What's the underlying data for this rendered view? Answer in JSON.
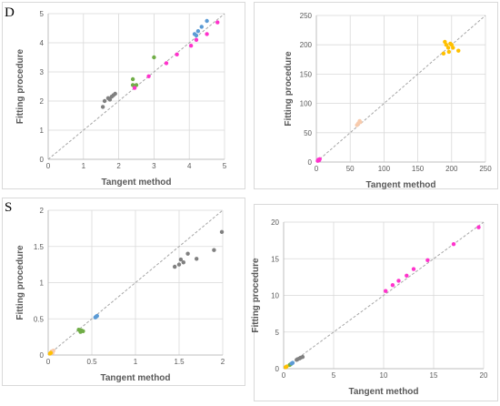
{
  "row_labels": {
    "top": "D",
    "bottom": "S"
  },
  "chart_data": [
    {
      "type": "scatter",
      "xlabel": "Tangent method",
      "ylabel": "Fitting procedure",
      "xlim": [
        0,
        5
      ],
      "ylim": [
        0,
        5
      ],
      "xticks": [
        "0",
        "1",
        "2",
        "3",
        "4",
        "5"
      ],
      "yticks": [
        "0",
        "1",
        "2",
        "3",
        "4",
        "5"
      ],
      "grid": true,
      "identity_line": true,
      "series": [
        {
          "color": "#808080",
          "points": [
            [
              1.55,
              1.8
            ],
            [
              1.6,
              2.0
            ],
            [
              1.7,
              2.1
            ],
            [
              1.75,
              2.05
            ],
            [
              1.8,
              2.15
            ],
            [
              1.85,
              2.2
            ],
            [
              1.9,
              2.25
            ]
          ]
        },
        {
          "color": "#70ad47",
          "points": [
            [
              2.4,
              2.75
            ],
            [
              2.4,
              2.55
            ],
            [
              2.45,
              2.5
            ],
            [
              2.5,
              2.55
            ],
            [
              3.0,
              3.5
            ]
          ]
        },
        {
          "color": "#ff33cc",
          "points": [
            [
              2.45,
              2.45
            ],
            [
              2.85,
              2.85
            ],
            [
              3.35,
              3.3
            ],
            [
              3.65,
              3.6
            ],
            [
              4.05,
              3.9
            ],
            [
              4.2,
              4.1
            ],
            [
              4.5,
              4.3
            ],
            [
              4.8,
              4.7
            ]
          ]
        },
        {
          "color": "#5b9bd5",
          "points": [
            [
              4.15,
              4.3
            ],
            [
              4.2,
              4.25
            ],
            [
              4.25,
              4.4
            ],
            [
              4.35,
              4.55
            ],
            [
              4.5,
              4.75
            ]
          ]
        }
      ]
    },
    {
      "type": "scatter",
      "xlabel": "Tangent method",
      "ylabel": "Fitting procedure",
      "xlim": [
        0,
        250
      ],
      "ylim": [
        0,
        250
      ],
      "xticks": [
        "0",
        "50",
        "100",
        "150",
        "200",
        "250"
      ],
      "yticks": [
        "0",
        "50",
        "100",
        "150",
        "200",
        "250"
      ],
      "grid": true,
      "identity_line": true,
      "series": [
        {
          "color": "#ffc000",
          "points": [
            [
              188,
              185
            ],
            [
              190,
              205
            ],
            [
              192,
              200
            ],
            [
              195,
              195
            ],
            [
              196,
              188
            ],
            [
              198,
              202
            ],
            [
              200,
              200
            ],
            [
              202,
              195
            ],
            [
              210,
              190
            ]
          ]
        },
        {
          "color": "#f8cbad",
          "points": [
            [
              60,
              63
            ],
            [
              62,
              66
            ],
            [
              64,
              70
            ],
            [
              65,
              68
            ]
          ]
        },
        {
          "color": "#ff33cc",
          "points": [
            [
              2,
              2
            ],
            [
              3,
              4
            ],
            [
              4,
              3
            ],
            [
              5,
              5
            ]
          ]
        }
      ]
    },
    {
      "type": "scatter",
      "xlabel": "Tangent method",
      "ylabel": "Fitting procedure",
      "xlim": [
        0,
        2
      ],
      "ylim": [
        0,
        2
      ],
      "xticks": [
        "0",
        "0.5",
        "1",
        "1.5",
        "2"
      ],
      "yticks": [
        "0",
        "0.5",
        "1",
        "1.5",
        "2"
      ],
      "grid": true,
      "identity_line": true,
      "series": [
        {
          "color": "#808080",
          "points": [
            [
              1.45,
              1.22
            ],
            [
              1.5,
              1.25
            ],
            [
              1.52,
              1.32
            ],
            [
              1.55,
              1.28
            ],
            [
              1.6,
              1.4
            ],
            [
              1.7,
              1.33
            ],
            [
              1.9,
              1.45
            ],
            [
              1.99,
              1.7
            ]
          ]
        },
        {
          "color": "#70ad47",
          "points": [
            [
              0.35,
              0.35
            ],
            [
              0.37,
              0.32
            ],
            [
              0.38,
              0.34
            ],
            [
              0.4,
              0.33
            ]
          ]
        },
        {
          "color": "#5b9bd5",
          "points": [
            [
              0.54,
              0.52
            ],
            [
              0.55,
              0.53
            ],
            [
              0.56,
              0.54
            ]
          ]
        },
        {
          "color": "#f8cbad",
          "points": [
            [
              0.04,
              0.05
            ],
            [
              0.05,
              0.03
            ],
            [
              0.06,
              0.06
            ]
          ]
        },
        {
          "color": "#ffc000",
          "points": [
            [
              0.02,
              0.02
            ],
            [
              0.03,
              0.03
            ]
          ]
        }
      ]
    },
    {
      "type": "scatter",
      "xlabel": "Tangent method",
      "ylabel": "Fitting procedure",
      "xlim": [
        0,
        20
      ],
      "ylim": [
        0,
        20
      ],
      "xticks": [
        "0",
        "5",
        "10",
        "15",
        "20"
      ],
      "yticks": [
        "0",
        "5",
        "10",
        "15",
        "20"
      ],
      "grid": true,
      "identity_line": true,
      "series": [
        {
          "color": "#ff33cc",
          "points": [
            [
              10.2,
              10.6
            ],
            [
              10.9,
              11.4
            ],
            [
              11.5,
              12.0
            ],
            [
              12.3,
              12.7
            ],
            [
              13.0,
              13.6
            ],
            [
              14.4,
              14.8
            ],
            [
              17.0,
              17.0
            ],
            [
              19.5,
              19.3
            ]
          ]
        },
        {
          "color": "#808080",
          "points": [
            [
              1.3,
              1.2
            ],
            [
              1.4,
              1.3
            ],
            [
              1.6,
              1.4
            ],
            [
              1.7,
              1.5
            ],
            [
              1.9,
              1.6
            ]
          ]
        },
        {
          "color": "#70ad47",
          "points": [
            [
              0.6,
              0.5
            ],
            [
              0.7,
              0.6
            ]
          ]
        },
        {
          "color": "#5b9bd5",
          "points": [
            [
              0.8,
              0.7
            ],
            [
              0.9,
              0.8
            ]
          ]
        },
        {
          "color": "#ffc000",
          "points": [
            [
              0.2,
              0.2
            ],
            [
              0.3,
              0.3
            ]
          ]
        }
      ]
    }
  ]
}
